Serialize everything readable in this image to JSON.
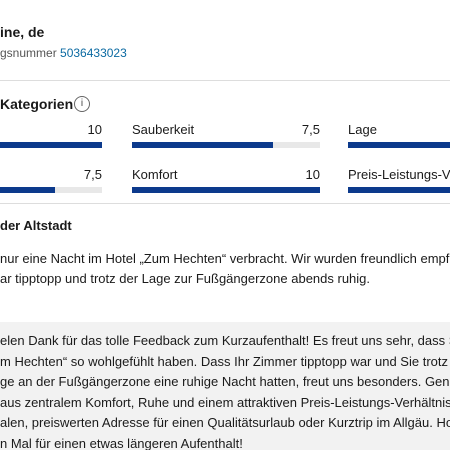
{
  "header": {
    "name": "ine, de",
    "booking_label": "gsnummer",
    "booking_number": "5036433023"
  },
  "ratings": {
    "title": "Kategorien",
    "range": [
      0,
      10
    ],
    "items": [
      {
        "value": 10
      },
      {
        "label": "Sauberkeit",
        "value": 7.5,
        "value_label": "7,5"
      },
      {
        "label": "Lage",
        "value": 10
      },
      {
        "value": 7.5,
        "value_label": "7,5"
      },
      {
        "label": "Komfort",
        "value": 10
      },
      {
        "label": "Preis-Leistungs-Ve",
        "value": 10
      }
    ]
  },
  "review": {
    "title": "der Altstadt",
    "lines": [
      "nur eine Nacht im Hotel „Zum Hechten“ verbracht. Wir wurden freundlich empf",
      "ar tipptopp und trotz der Lage zur Fußgängerzone abends ruhig."
    ]
  },
  "reply": {
    "lines": [
      "elen Dank für das tolle Feedback zum Kurzaufenthalt! Es freut uns sehr, dass Sie",
      "m Hechten“ so wohlgefühlt haben. Dass Ihr Zimmer tipptopp war und Sie trotz",
      "ge an der Fußgängerzone eine ruhige Nacht hatten, freut uns besonders. Genau",
      "aus zentralem Komfort, Ruhe und einem attraktiven Preis-Leistungs-Verhältnis aus",
      "alen, preiswerten Adresse für einen Qualitätsurlaub oder Kurztrip im Allgäu. Hof",
      "n Mal für einen etwas längeren Aufenthalt!"
    ]
  }
}
